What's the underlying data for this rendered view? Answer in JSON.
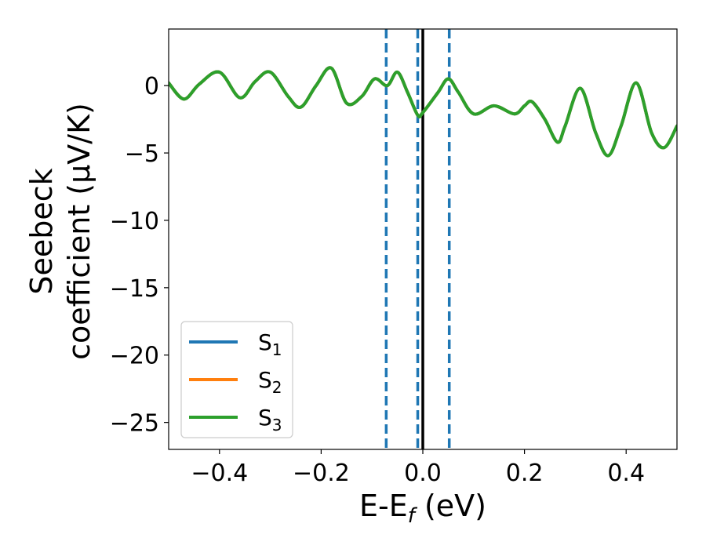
{
  "chart_data": {
    "type": "line",
    "xlabel": {
      "base": "E-E",
      "sub": "f",
      "rest": " (eV)"
    },
    "ylabel": {
      "line1": "Seebeck",
      "line2": "coefficient  (μV/K)"
    },
    "xlim": [
      -0.5,
      0.5
    ],
    "ylim": [
      -27,
      4.2
    ],
    "xticks": [
      -0.4,
      -0.2,
      0.0,
      0.2,
      0.4
    ],
    "xtick_labels": [
      "−0.4",
      "−0.2",
      "0.0",
      "0.2",
      "0.4"
    ],
    "yticks": [
      0,
      -5,
      -10,
      -15,
      -20,
      -25
    ],
    "ytick_labels": [
      "0",
      "−5",
      "−10",
      "−15",
      "−20",
      "−25"
    ],
    "grid": false,
    "legend_placement": "lower-left",
    "vertical_lines": [
      {
        "x": -0.072,
        "style": "dashed",
        "color": "#1f77b4"
      },
      {
        "x": -0.01,
        "style": "dashed",
        "color": "#1f77b4"
      },
      {
        "x": 0.0,
        "style": "solid",
        "color": "#000000"
      },
      {
        "x": 0.052,
        "style": "dashed",
        "color": "#1f77b4"
      }
    ],
    "x": [
      -0.5,
      -0.47,
      -0.44,
      -0.4,
      -0.36,
      -0.33,
      -0.3,
      -0.265,
      -0.24,
      -0.21,
      -0.18,
      -0.15,
      -0.12,
      -0.095,
      -0.07,
      -0.05,
      -0.03,
      -0.01,
      0.0,
      0.03,
      0.05,
      0.07,
      0.1,
      0.14,
      0.18,
      0.2,
      0.215,
      0.24,
      0.265,
      0.28,
      0.31,
      0.34,
      0.365,
      0.39,
      0.42,
      0.45,
      0.475,
      0.5
    ],
    "series": [
      {
        "name": "S",
        "sub": "1",
        "color": "#1f77b4",
        "values": [
          0.2,
          -1.0,
          0.1,
          1.0,
          -0.9,
          0.3,
          1.0,
          -0.8,
          -1.6,
          0.0,
          1.3,
          -1.3,
          -0.8,
          0.5,
          0.0,
          1.0,
          -0.5,
          -2.2,
          -2.0,
          -0.5,
          0.5,
          -0.5,
          -2.1,
          -1.5,
          -2.1,
          -1.5,
          -1.2,
          -2.5,
          -4.2,
          -3.0,
          -0.2,
          -3.5,
          -5.2,
          -3.0,
          0.2,
          -3.5,
          -4.6,
          -3.0
        ]
      },
      {
        "name": "S",
        "sub": "2",
        "color": "#ff7f0e",
        "values": [
          0.2,
          -1.0,
          0.1,
          1.0,
          -0.9,
          0.3,
          1.0,
          -0.8,
          -1.6,
          0.0,
          1.3,
          -1.3,
          -0.8,
          0.5,
          0.0,
          1.0,
          -0.5,
          -2.2,
          -2.0,
          -0.5,
          0.5,
          -0.5,
          -2.1,
          -1.5,
          -2.1,
          -1.5,
          -1.2,
          -2.5,
          -4.2,
          -3.0,
          -0.2,
          -3.5,
          -5.2,
          -3.0,
          0.2,
          -3.5,
          -4.6,
          -3.0
        ]
      },
      {
        "name": "S",
        "sub": "3",
        "color": "#2ca02c",
        "values": [
          0.2,
          -1.0,
          0.1,
          1.0,
          -0.9,
          0.3,
          1.0,
          -0.8,
          -1.6,
          0.0,
          1.3,
          -1.3,
          -0.8,
          0.5,
          0.0,
          1.0,
          -0.5,
          -2.2,
          -2.0,
          -0.5,
          0.5,
          -0.5,
          -2.1,
          -1.5,
          -2.1,
          -1.5,
          -1.2,
          -2.5,
          -4.2,
          -3.0,
          -0.2,
          -3.5,
          -5.2,
          -3.0,
          0.2,
          -3.5,
          -4.6,
          -3.0
        ]
      }
    ]
  }
}
